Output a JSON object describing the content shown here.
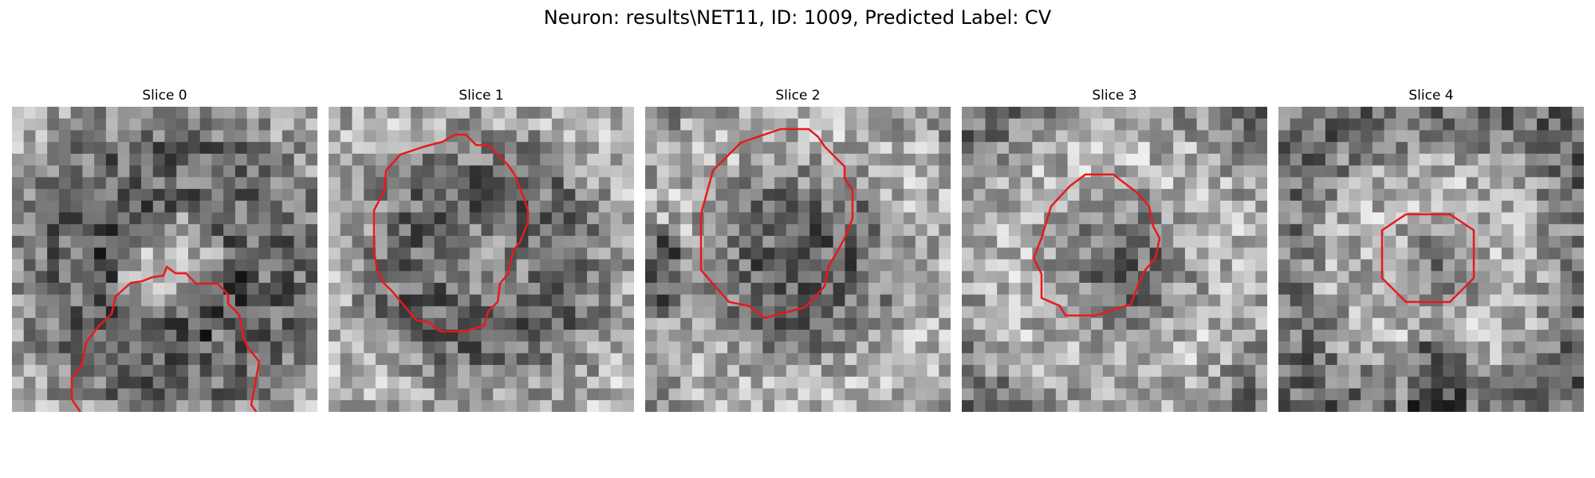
{
  "figure": {
    "title": "Neuron: results\\NET11, ID: 1009, Predicted Label: CV"
  },
  "panels": [
    {
      "title": "Slice 0",
      "contour_color": "#e8191c"
    },
    {
      "title": "Slice 1",
      "contour_color": "#e8191c"
    },
    {
      "title": "Slice 2",
      "contour_color": "#e8191c"
    },
    {
      "title": "Slice 3",
      "contour_color": "#e8191c"
    },
    {
      "title": "Slice 4",
      "contour_color": "#e8191c"
    }
  ]
}
